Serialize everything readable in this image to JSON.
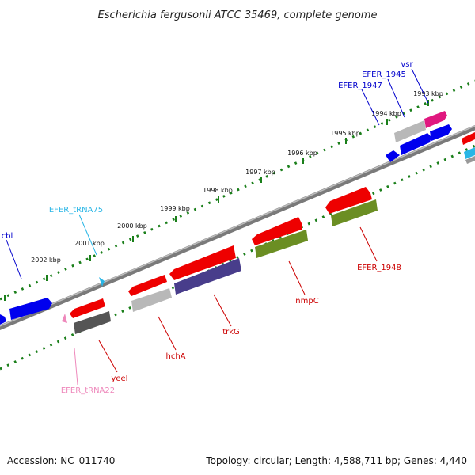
{
  "title": "Escherichia fergusonii ATCC 35469, complete genome",
  "footer": {
    "accession": "Accession: NC_011740",
    "topology": "Topology: circular; Length: 4,588,711 bp; Genes: 4,440"
  },
  "scale_labels": [
    "1993 kbp",
    "1994 kbp",
    "1995 kbp",
    "1996 kbp",
    "1997 kbp",
    "1998 kbp",
    "1999 kbp",
    "2000 kbp",
    "2001 kbp",
    "2002 kbp"
  ],
  "colors": {
    "cds_forward": "#0000ee",
    "cds_reverse": "#ee0000",
    "pseudo_grey": "#aaaaaa",
    "dark_grey": "#555555",
    "olive": "#6b8e23",
    "slate": "#483d8b",
    "magenta": "#e0187f",
    "cyan": "#29b6e6",
    "trna_pink": "#ee88bb",
    "backbone": "#888888",
    "scale_dots": "#1a7f1a"
  },
  "gene_labels": [
    {
      "name": "vsr",
      "color": "#0000cc"
    },
    {
      "name": "EFER_1945",
      "color": "#0000cc"
    },
    {
      "name": "EFER_1947",
      "color": "#0000cc"
    },
    {
      "name": "EFER_tRNA75",
      "color": "#29b6e6"
    },
    {
      "name": "cbl",
      "color": "#0000cc"
    },
    {
      "name": "EFER_1948",
      "color": "#cc0000"
    },
    {
      "name": "nmpC",
      "color": "#cc0000"
    },
    {
      "name": "trkG",
      "color": "#cc0000"
    },
    {
      "name": "hchA",
      "color": "#cc0000"
    },
    {
      "name": "yeeI",
      "color": "#cc0000"
    },
    {
      "name": "EFER_tRNA22",
      "color": "#ee88bb"
    }
  ]
}
